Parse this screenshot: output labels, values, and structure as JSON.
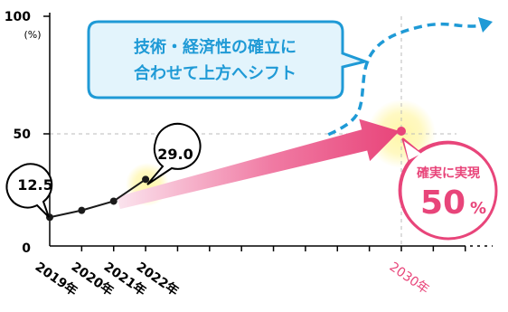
{
  "chart_data": {
    "type": "line",
    "title": "",
    "xlabel": "",
    "ylabel": "(%)",
    "ylim": [
      0,
      100
    ],
    "y_ticks": [
      "0",
      "50",
      "100"
    ],
    "x_tick_labels": [
      "2019年",
      "2020年",
      "2021年",
      "2022年",
      "2030年"
    ],
    "series": [
      {
        "values": [
          {
            "x": "2019",
            "y": 12.5
          },
          {
            "x": "2020",
            "y": 15.5
          },
          {
            "x": "2021",
            "y": 19.5
          },
          {
            "x": "2022",
            "y": 29.0
          }
        ]
      }
    ],
    "target": {
      "x": "2030",
      "y": 50
    },
    "upward_trend": [
      {
        "x": "2028",
        "y": 54
      },
      {
        "x": "2029",
        "y": 62
      },
      {
        "x": "2030",
        "y": 93
      }
    ],
    "data_labels": [
      "12.5",
      "29.0"
    ],
    "annotations": {
      "callout_line1": "技術・経済性の確立に",
      "callout_line2": "合わせて上方へシフト",
      "target_label": "確実に実現",
      "target_value": "50",
      "target_unit": "%"
    },
    "grid": false,
    "legend": "none"
  },
  "colors": {
    "axis": "#000000",
    "line": "#1a1a1a",
    "arrow_pink": "#e8457a",
    "arrow_pale": "#f8d3e2",
    "dashed_blue": "#1f9ad6",
    "callout_fill": "#e3f4fc",
    "callout_border": "#1f9ad6",
    "callout_text": "#1f9ad6",
    "target_border": "#e8457a",
    "target_text": "#e8457a",
    "target_dot": "#e8457a",
    "highlight": "#fff6a8",
    "grey_dash": "#bbbbbb"
  }
}
